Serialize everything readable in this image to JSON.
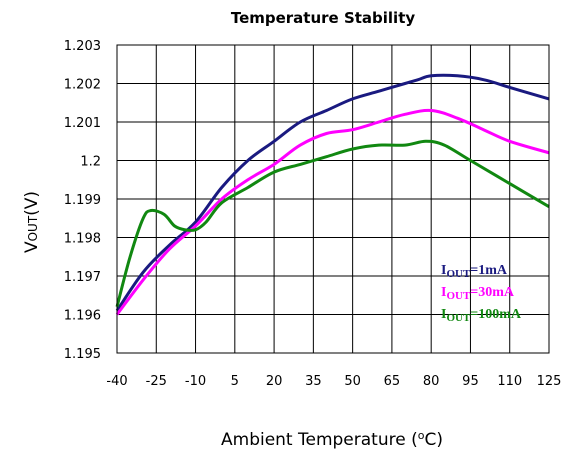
{
  "chart_data": {
    "type": "line",
    "title": "Temperature Stability",
    "xlabel": "Ambient Temperature (",
    "xlabel_deg": "o",
    "xlabel_unit": "C)",
    "ylabel_main": "V",
    "ylabel_sub": "OUT",
    "ylabel_unit": "(V)",
    "xlim": [
      -40,
      125
    ],
    "ylim": [
      1.195,
      1.203
    ],
    "x_ticks": [
      -40,
      -25,
      -10,
      5,
      20,
      35,
      50,
      65,
      80,
      95,
      110,
      125
    ],
    "y_ticks": [
      1.195,
      1.196,
      1.197,
      1.198,
      1.199,
      1.2,
      1.201,
      1.202,
      1.203
    ],
    "x_tick_labels": [
      "-40",
      "-25",
      "-10",
      "5",
      "20",
      "35",
      "50",
      "65",
      "80",
      "95",
      "110",
      "125"
    ],
    "y_tick_labels": [
      "1.195",
      "1.196",
      "1.197",
      "1.198",
      "1.199",
      "1.2",
      "1.201",
      "1.202",
      "1.203"
    ],
    "grid": true,
    "series": [
      {
        "name": "1mA",
        "legend_main": "I",
        "legend_sub": "OUT",
        "legend_rest": "=1mA",
        "color": "#1a1a80",
        "x": [
          -40,
          -30,
          -20,
          -10,
          0,
          10,
          20,
          30,
          40,
          50,
          60,
          70,
          75,
          80,
          90,
          100,
          110,
          125
        ],
        "y": [
          1.1961,
          1.1971,
          1.1978,
          1.1984,
          1.1993,
          1.2,
          1.2005,
          1.201,
          1.2013,
          1.2016,
          1.2018,
          1.202,
          1.2021,
          1.2022,
          1.2022,
          1.2021,
          1.2019,
          1.2016
        ]
      },
      {
        "name": "30mA",
        "legend_main": "I",
        "legend_sub": "OUT",
        "legend_rest": "=30mA",
        "color": "#ff00ff",
        "x": [
          -40,
          -30,
          -20,
          -10,
          0,
          10,
          20,
          30,
          40,
          50,
          60,
          70,
          80,
          90,
          100,
          110,
          125
        ],
        "y": [
          1.196,
          1.1969,
          1.1977,
          1.1983,
          1.199,
          1.1995,
          1.1999,
          1.2004,
          1.2007,
          1.2008,
          1.201,
          1.2012,
          1.2013,
          1.2011,
          1.2008,
          1.2005,
          1.2002
        ]
      },
      {
        "name": "100mA",
        "legend_main": "I",
        "legend_sub": "OUT",
        "legend_rest": "=100mA",
        "color": "#118811",
        "x": [
          -40,
          -35,
          -30,
          -27,
          -22,
          -18,
          -14,
          -10,
          -6,
          0,
          10,
          20,
          30,
          40,
          50,
          60,
          70,
          78,
          85,
          95,
          110,
          125
        ],
        "y": [
          1.1962,
          1.1975,
          1.1985,
          1.1987,
          1.1986,
          1.1983,
          1.1982,
          1.1982,
          1.1984,
          1.1989,
          1.1993,
          1.1997,
          1.1999,
          1.2001,
          1.2003,
          1.2004,
          1.2004,
          1.2005,
          1.2004,
          1.2,
          1.1994,
          1.1988
        ]
      }
    ]
  }
}
